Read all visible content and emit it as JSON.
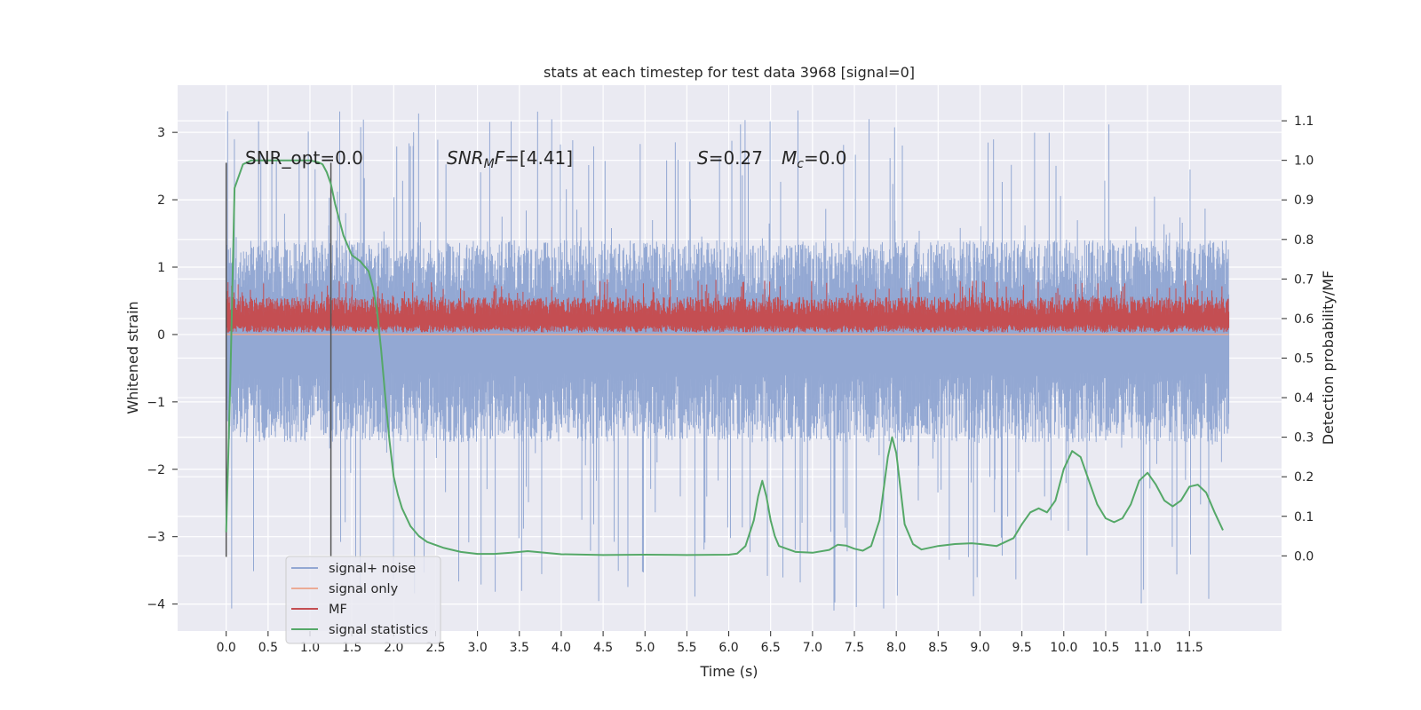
{
  "chart_data": {
    "type": "line",
    "title": "stats at each timestep for test data 3968 [signal=0]",
    "xlabel": "Time (s)",
    "ylabel_left": "Whitened strain",
    "ylabel_right": "Detection probability/MF",
    "xlim": [
      -0.58,
      12.6
    ],
    "ylim_left": [
      -4.4,
      3.7
    ],
    "ylim_right": [
      -0.19,
      1.19
    ],
    "x_ticks": [
      0.0,
      0.5,
      1.0,
      1.5,
      2.0,
      2.5,
      3.0,
      3.5,
      4.0,
      4.5,
      5.0,
      5.5,
      6.0,
      6.5,
      7.0,
      7.5,
      8.0,
      8.5,
      9.0,
      9.5,
      10.0,
      10.5,
      11.0,
      11.5
    ],
    "x_tick_labels": [
      "0.0",
      "0.5",
      "1.0",
      "1.5",
      "2.0",
      "2.5",
      "3.0",
      "3.5",
      "4.0",
      "4.5",
      "5.0",
      "5.5",
      "6.0",
      "6.5",
      "7.0",
      "7.5",
      "8.0",
      "8.5",
      "9.0",
      "9.5",
      "10.0",
      "10.5",
      "11.0",
      "11.5"
    ],
    "y_left_ticks": [
      3,
      2,
      1,
      0,
      -1,
      -2,
      -3,
      -4
    ],
    "y_left_tick_labels": [
      "3",
      "2",
      "1",
      "0",
      "−1",
      "−2",
      "−3",
      "−4"
    ],
    "y_right_ticks": [
      1.1,
      1.0,
      0.9,
      0.8,
      0.7,
      0.6,
      0.5,
      0.4,
      0.3,
      0.2,
      0.1,
      0.0
    ],
    "y_right_tick_labels": [
      "1.1",
      "1.0",
      "0.9",
      "0.8",
      "0.7",
      "0.6",
      "0.5",
      "0.4",
      "0.3",
      "0.2",
      "0.1",
      "0.0"
    ],
    "grid": true,
    "legend_position": "lower-left",
    "annotations": {
      "snr_opt": "SNR_opt=0.0",
      "snr_mf_sym": "SNR",
      "snr_mf_sub": "M",
      "snr_mf_sym2": "F",
      "snr_mf_val": "=[4.41]",
      "s_sym": "S",
      "s_val": "=0.27",
      "mc_sym": "M",
      "mc_sub": "c",
      "mc_val": "=0.0"
    },
    "vertical_lines_x": [
      0.0,
      1.25
    ],
    "series": [
      {
        "name": "signal+ noise",
        "color": "#93a8d3",
        "axis": "left",
        "x_range": [
          0.0,
          11.97
        ],
        "envelope": {
          "low": -1.6,
          "high": 1.4,
          "spike_low": -4.1,
          "spike_high": 3.35
        }
      },
      {
        "name": "signal only",
        "color": "#ecab95",
        "axis": "left",
        "x_range": [
          0.0,
          11.97
        ],
        "values_constant": 0.0
      },
      {
        "name": "MF",
        "color": "#c44e52",
        "axis": "left",
        "x_range": [
          0.0,
          11.97
        ],
        "envelope": {
          "low": 0.0,
          "high": 0.5,
          "spike_high": 1.0
        }
      },
      {
        "name": "signal statistics",
        "color": "#55a868",
        "axis": "right",
        "x": [
          0.0,
          0.05,
          0.1,
          0.2,
          0.3,
          0.5,
          0.7,
          0.9,
          1.0,
          1.1,
          1.15,
          1.2,
          1.25,
          1.3,
          1.4,
          1.5,
          1.6,
          1.7,
          1.75,
          1.8,
          1.85,
          1.9,
          1.95,
          2.0,
          2.05,
          2.1,
          2.2,
          2.3,
          2.4,
          2.6,
          2.8,
          3.0,
          3.2,
          3.4,
          3.6,
          3.8,
          4.0,
          4.5,
          5.0,
          5.5,
          6.0,
          6.1,
          6.2,
          6.3,
          6.35,
          6.4,
          6.45,
          6.5,
          6.55,
          6.6,
          6.8,
          7.0,
          7.2,
          7.3,
          7.4,
          7.5,
          7.6,
          7.7,
          7.8,
          7.85,
          7.9,
          7.95,
          8.0,
          8.05,
          8.1,
          8.2,
          8.3,
          8.5,
          8.7,
          8.9,
          9.0,
          9.2,
          9.4,
          9.5,
          9.6,
          9.7,
          9.8,
          9.9,
          10.0,
          10.1,
          10.2,
          10.3,
          10.4,
          10.5,
          10.6,
          10.7,
          10.8,
          10.9,
          11.0,
          11.1,
          11.2,
          11.3,
          11.4,
          11.5,
          11.6,
          11.7,
          11.8,
          11.9
        ],
        "values": [
          0.06,
          0.45,
          0.93,
          0.99,
          1.0,
          1.0,
          1.0,
          1.0,
          1.0,
          0.995,
          0.99,
          0.97,
          0.94,
          0.89,
          0.81,
          0.76,
          0.745,
          0.72,
          0.68,
          0.62,
          0.52,
          0.4,
          0.29,
          0.2,
          0.155,
          0.12,
          0.075,
          0.05,
          0.035,
          0.02,
          0.01,
          0.005,
          0.005,
          0.008,
          0.012,
          0.008,
          0.004,
          0.002,
          0.003,
          0.002,
          0.003,
          0.006,
          0.025,
          0.09,
          0.15,
          0.19,
          0.15,
          0.09,
          0.05,
          0.025,
          0.01,
          0.008,
          0.015,
          0.028,
          0.026,
          0.018,
          0.013,
          0.025,
          0.09,
          0.17,
          0.25,
          0.3,
          0.26,
          0.17,
          0.08,
          0.03,
          0.016,
          0.025,
          0.03,
          0.032,
          0.03,
          0.025,
          0.045,
          0.08,
          0.11,
          0.12,
          0.11,
          0.14,
          0.22,
          0.265,
          0.25,
          0.19,
          0.13,
          0.095,
          0.085,
          0.095,
          0.13,
          0.19,
          0.21,
          0.18,
          0.14,
          0.125,
          0.14,
          0.175,
          0.18,
          0.16,
          0.11,
          0.065
        ]
      }
    ]
  }
}
